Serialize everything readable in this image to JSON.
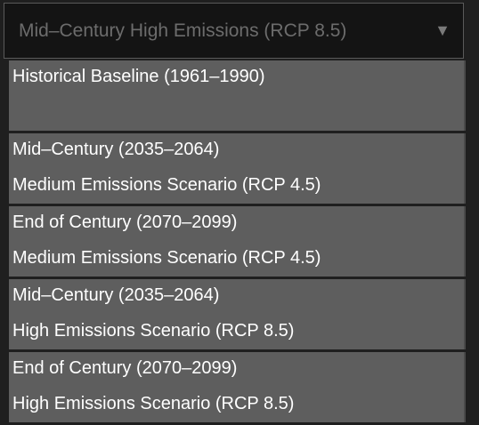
{
  "select": {
    "value": "Mid–Century High Emissions (RCP 8.5)",
    "arrow_icon": "triangle-down-icon"
  },
  "options": [
    {
      "line1": "Historical Baseline (1961–1990)",
      "line2": ""
    },
    {
      "line1": "Mid–Century (2035–2064)",
      "line2": "Medium Emissions Scenario (RCP 4.5)"
    },
    {
      "line1": "End of Century (2070–2099)",
      "line2": "Medium Emissions Scenario (RCP 4.5)"
    },
    {
      "line1": "Mid–Century (2035–2064)",
      "line2": "High Emissions Scenario (RCP 8.5)"
    },
    {
      "line1": "End of Century (2070–2099)",
      "line2": "High Emissions Scenario (RCP 8.5)"
    }
  ],
  "colors": {
    "page_background": "#1f1f1f",
    "select_background": "#141414",
    "option_background": "#5e5e5e",
    "option_text": "#ffffff",
    "select_text": "#6c6c6c"
  }
}
